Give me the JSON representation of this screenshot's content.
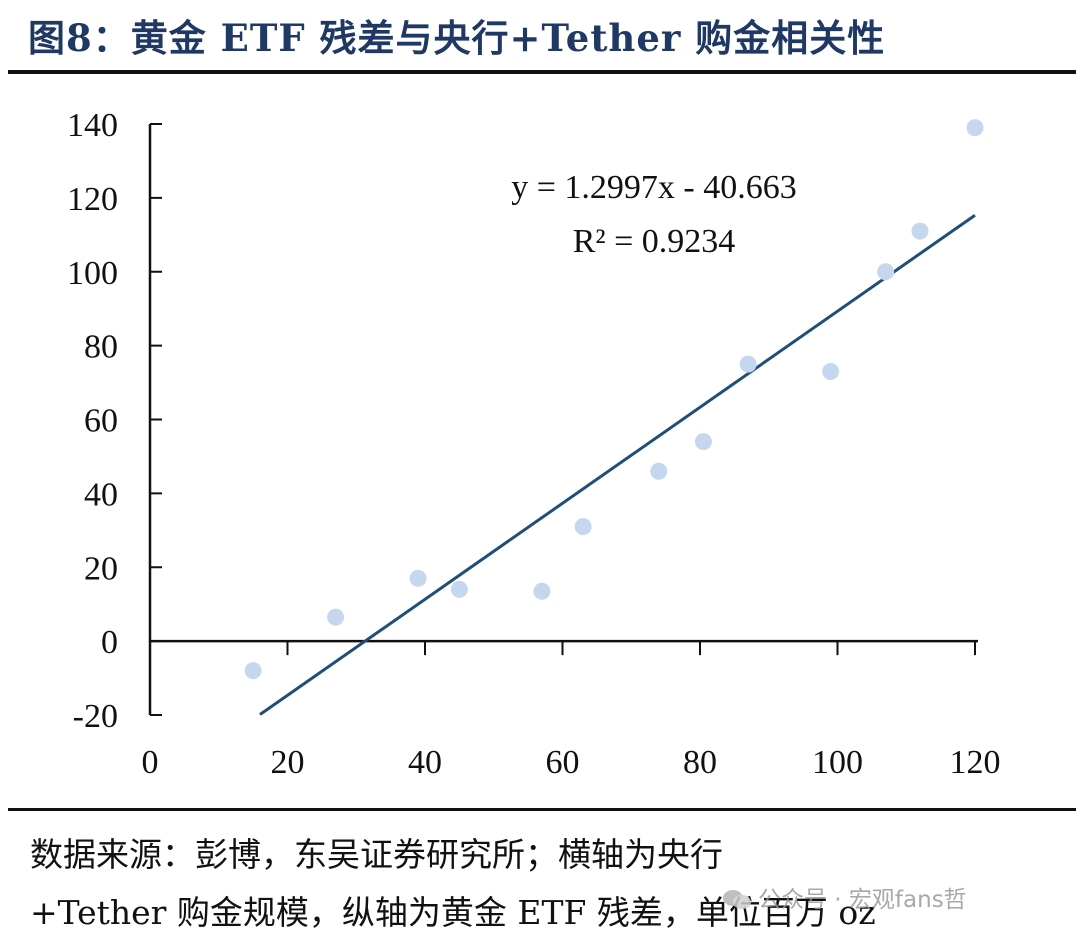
{
  "title": "图8：黄金 ETF 残差与央行+Tether 购金相关性",
  "source": {
    "line1": "数据来源：彭博，东吴证券研究所；横轴为央行",
    "line2": "+Tether 购金规模，纵轴为黄金 ETF 残差，单位百万 oz"
  },
  "watermark": {
    "text": "公众号 · 宏观fans哲",
    "icon": "wechat-icon"
  },
  "colors": {
    "title": "#1f3864",
    "points": "#c5d7ee",
    "trendline": "#1f4e79",
    "axis": "#111111"
  },
  "chart_data": {
    "type": "scatter",
    "title": "",
    "xlabel": "",
    "ylabel": "",
    "xlim": [
      0,
      120
    ],
    "ylim": [
      -20,
      140
    ],
    "x_ticks": [
      0,
      20,
      40,
      60,
      80,
      100,
      120
    ],
    "y_ticks": [
      -20,
      0,
      20,
      40,
      60,
      80,
      100,
      120,
      140
    ],
    "points": [
      {
        "x": 15,
        "y": -8
      },
      {
        "x": 27,
        "y": 6.5
      },
      {
        "x": 39,
        "y": 17
      },
      {
        "x": 45,
        "y": 14
      },
      {
        "x": 57,
        "y": 13.5
      },
      {
        "x": 63,
        "y": 31
      },
      {
        "x": 74,
        "y": 46
      },
      {
        "x": 80.5,
        "y": 54
      },
      {
        "x": 87,
        "y": 75
      },
      {
        "x": 99,
        "y": 73
      },
      {
        "x": 107,
        "y": 100
      },
      {
        "x": 112,
        "y": 111
      },
      {
        "x": 120,
        "y": 139
      }
    ],
    "trendline": {
      "slope": 1.2997,
      "intercept": -40.663,
      "x_range": [
        16,
        120
      ],
      "equation": "y = 1.2997x - 40.663",
      "r_squared": "R² = 0.9234"
    },
    "grid": false,
    "legend": "none"
  }
}
